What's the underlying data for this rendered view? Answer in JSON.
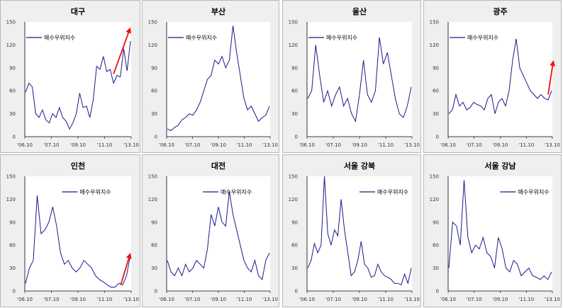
{
  "chart_data": [
    {
      "type": "line",
      "title": "대구",
      "legend": "매수우위지수",
      "legend_pos": "top-left",
      "ylim": [
        0,
        150
      ],
      "yticks": [
        "0",
        "30",
        "60",
        "90",
        "120",
        "150"
      ],
      "xticks": [
        "'06.10",
        "'07.10",
        "'09.10",
        "'11.10",
        "'13.10"
      ],
      "values": [
        58,
        70,
        65,
        30,
        25,
        35,
        22,
        18,
        30,
        25,
        38,
        25,
        20,
        10,
        18,
        30,
        57,
        38,
        40,
        25,
        48,
        92,
        88,
        105,
        85,
        88,
        70,
        80,
        78,
        115,
        86,
        125
      ],
      "arrow": {
        "from": [
          26,
          82
        ],
        "to": [
          31,
          143
        ]
      }
    },
    {
      "type": "line",
      "title": "부산",
      "legend": "매수우위지수",
      "legend_pos": "top-left",
      "ylim": [
        0,
        150
      ],
      "yticks": [
        "0",
        "30",
        "60",
        "90",
        "120",
        "150"
      ],
      "xticks": [
        "'06.10",
        "'07.10",
        "'09.10",
        "'11.10",
        "'13.10"
      ],
      "values": [
        10,
        8,
        12,
        15,
        22,
        25,
        30,
        28,
        35,
        45,
        60,
        75,
        80,
        100,
        95,
        105,
        90,
        100,
        145,
        110,
        80,
        50,
        35,
        40,
        30,
        20,
        25,
        28,
        40
      ]
    },
    {
      "type": "line",
      "title": "울산",
      "legend": "매수우위지수",
      "legend_pos": "top-left",
      "ylim": [
        0,
        150
      ],
      "yticks": [
        "0",
        "30",
        "60",
        "90",
        "120",
        "150"
      ],
      "xticks": [
        "'06.10",
        "'07.10",
        "'09.10",
        "'11.10",
        "'13.10"
      ],
      "values": [
        50,
        60,
        120,
        80,
        45,
        60,
        40,
        55,
        65,
        40,
        50,
        30,
        20,
        55,
        100,
        55,
        45,
        60,
        130,
        95,
        110,
        80,
        50,
        30,
        25,
        40,
        65
      ]
    },
    {
      "type": "line",
      "title": "광주",
      "legend": "매수우위지수",
      "legend_pos": "top-left",
      "ylim": [
        0,
        150
      ],
      "yticks": [
        "0",
        "30",
        "60",
        "90",
        "120",
        "150"
      ],
      "xticks": [
        "'06.10",
        "'07.10",
        "'09.10",
        "'11.10",
        "'13.10"
      ],
      "values": [
        30,
        35,
        55,
        40,
        45,
        35,
        38,
        45,
        42,
        40,
        35,
        50,
        55,
        30,
        45,
        50,
        40,
        60,
        100,
        128,
        90,
        80,
        70,
        60,
        55,
        50,
        55,
        50,
        48,
        60
      ],
      "arrow": {
        "from": [
          28,
          55
        ],
        "to": [
          29.5,
          100
        ]
      }
    },
    {
      "type": "line",
      "title": "인천",
      "legend": "매수우위지수",
      "legend_pos": "top-center",
      "ylim": [
        0,
        150
      ],
      "yticks": [
        "0",
        "30",
        "60",
        "90",
        "120",
        "150"
      ],
      "xticks": [
        "'06.10",
        "'07.10",
        "'09.10",
        "'11.10",
        "'13.10"
      ],
      "values": [
        10,
        30,
        40,
        125,
        75,
        80,
        90,
        110,
        85,
        50,
        35,
        40,
        30,
        25,
        30,
        40,
        35,
        30,
        20,
        15,
        12,
        8,
        5,
        5,
        10,
        8,
        20,
        48
      ],
      "arrow": {
        "from": [
          24.5,
          8
        ],
        "to": [
          27,
          50
        ]
      }
    },
    {
      "type": "line",
      "title": "대전",
      "legend": "매수우위지수",
      "legend_pos": "top-center",
      "ylim": [
        0,
        150
      ],
      "yticks": [
        "0",
        "30",
        "60",
        "90",
        "120",
        "150"
      ],
      "xticks": [
        "'06.10",
        "'07.10",
        "'09.10",
        "'11.10",
        "'13.10"
      ],
      "values": [
        40,
        25,
        20,
        30,
        20,
        35,
        25,
        30,
        40,
        35,
        30,
        55,
        100,
        85,
        110,
        90,
        85,
        130,
        100,
        80,
        60,
        40,
        30,
        25,
        40,
        20,
        15,
        40,
        50
      ]
    },
    {
      "type": "line",
      "title": "서울 강북",
      "legend": "매수우위지수",
      "legend_pos": "top-right",
      "ylim": [
        0,
        150
      ],
      "yticks": [
        "0",
        "30",
        "60",
        "90",
        "120",
        "150"
      ],
      "xticks": [
        "'06.10",
        "'07.10",
        "'09.10",
        "'11.10",
        "'13.10"
      ],
      "values": [
        30,
        40,
        62,
        50,
        60,
        150,
        75,
        60,
        80,
        72,
        120,
        80,
        50,
        20,
        25,
        40,
        65,
        35,
        30,
        18,
        20,
        35,
        25,
        20,
        18,
        15,
        10,
        10,
        8,
        22,
        10,
        30
      ]
    },
    {
      "type": "line",
      "title": "서울 강남",
      "legend": "매수우위지수",
      "legend_pos": "top-right",
      "ylim": [
        0,
        150
      ],
      "yticks": [
        "0",
        "30",
        "60",
        "90",
        "120",
        "150"
      ],
      "xticks": [
        "'06.10",
        "'07.10",
        "'09.10",
        "'11.10",
        "'13.10"
      ],
      "values": [
        30,
        90,
        85,
        60,
        145,
        70,
        50,
        60,
        55,
        70,
        50,
        45,
        30,
        70,
        55,
        30,
        25,
        40,
        35,
        20,
        25,
        30,
        20,
        18,
        15,
        20,
        15,
        25
      ]
    }
  ],
  "colors": {
    "line": "#1a1a8c",
    "arrow": "#ee1111"
  }
}
